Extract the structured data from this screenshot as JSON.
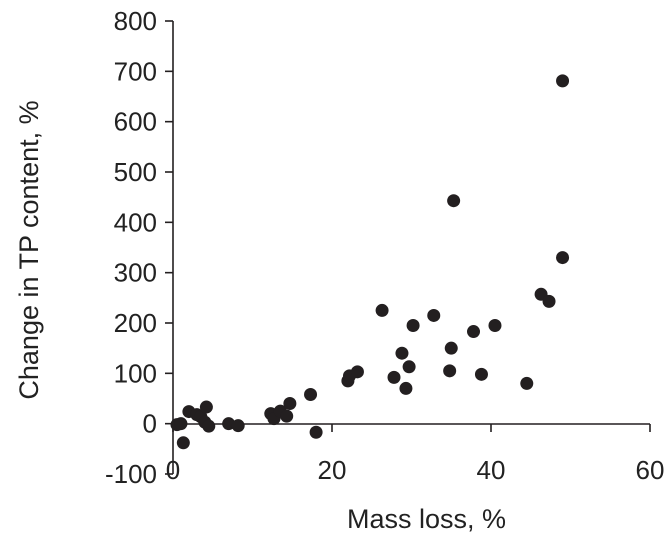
{
  "chart_data": {
    "type": "scatter",
    "title": "",
    "xlabel": "Mass loss, %",
    "ylabel": "Change in TP content, %",
    "xlim": [
      0,
      60
    ],
    "ylim": [
      -100,
      800
    ],
    "x_ticks": [
      "0",
      "20",
      "40",
      "60"
    ],
    "y_ticks": [
      "-100",
      "0",
      "100",
      "200",
      "300",
      "400",
      "500",
      "600",
      "700",
      "800"
    ],
    "grid": false,
    "legend": "none",
    "marker_color": "#231f20",
    "axis_color": "#231f20",
    "points": [
      {
        "x": 0.5,
        "y": -2
      },
      {
        "x": 1.0,
        "y": 0
      },
      {
        "x": 1.3,
        "y": -38
      },
      {
        "x": 2.0,
        "y": 24
      },
      {
        "x": 3.0,
        "y": 18
      },
      {
        "x": 3.5,
        "y": 14
      },
      {
        "x": 4.0,
        "y": 3
      },
      {
        "x": 4.2,
        "y": 33
      },
      {
        "x": 4.5,
        "y": -5
      },
      {
        "x": 7.0,
        "y": 0
      },
      {
        "x": 8.2,
        "y": -4
      },
      {
        "x": 12.3,
        "y": 20
      },
      {
        "x": 12.7,
        "y": 10
      },
      {
        "x": 13.5,
        "y": 25
      },
      {
        "x": 14.3,
        "y": 15
      },
      {
        "x": 14.7,
        "y": 40
      },
      {
        "x": 17.3,
        "y": 58
      },
      {
        "x": 18.0,
        "y": -17
      },
      {
        "x": 22.0,
        "y": 85
      },
      {
        "x": 22.2,
        "y": 95
      },
      {
        "x": 23.2,
        "y": 103
      },
      {
        "x": 26.3,
        "y": 225
      },
      {
        "x": 27.8,
        "y": 92
      },
      {
        "x": 28.8,
        "y": 140
      },
      {
        "x": 29.3,
        "y": 70
      },
      {
        "x": 29.7,
        "y": 113
      },
      {
        "x": 30.2,
        "y": 195
      },
      {
        "x": 32.8,
        "y": 215
      },
      {
        "x": 34.8,
        "y": 105
      },
      {
        "x": 35.0,
        "y": 150
      },
      {
        "x": 35.3,
        "y": 443
      },
      {
        "x": 37.8,
        "y": 183
      },
      {
        "x": 38.8,
        "y": 98
      },
      {
        "x": 40.5,
        "y": 195
      },
      {
        "x": 44.5,
        "y": 80
      },
      {
        "x": 46.3,
        "y": 257
      },
      {
        "x": 47.3,
        "y": 243
      },
      {
        "x": 49.0,
        "y": 681
      },
      {
        "x": 49.0,
        "y": 330
      }
    ]
  }
}
